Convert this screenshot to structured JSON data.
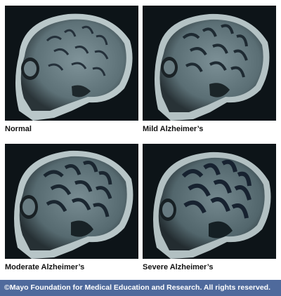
{
  "panels": [
    {
      "label": "Normal"
    },
    {
      "label": "Mild Alzheimer’s"
    },
    {
      "label": "Moderate Alzheimer’s"
    },
    {
      "label": "Severe Alzheimer’s"
    }
  ],
  "footer": {
    "copyright": "©Mayo Foundation for Medical Education and Research.  All rights reserved."
  },
  "colors": {
    "footer_bg": "#4f6a9c",
    "scan_bg": "#0d1418",
    "tissue": "#8aa0a6"
  }
}
